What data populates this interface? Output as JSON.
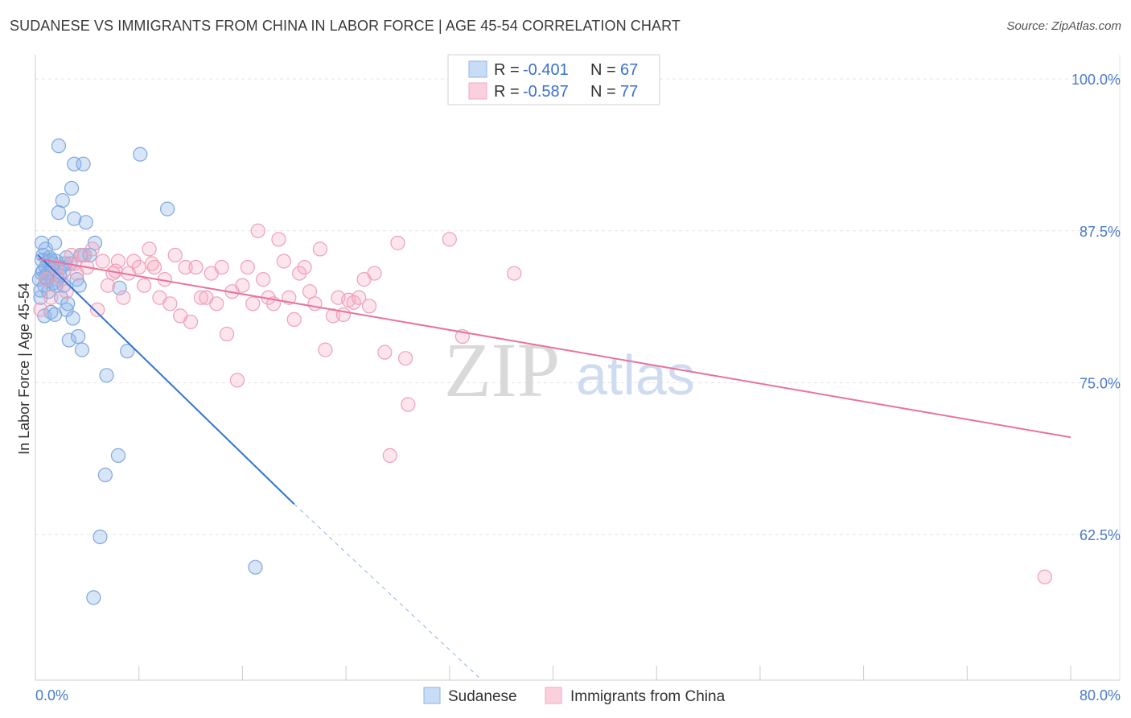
{
  "title": "SUDANESE VS IMMIGRANTS FROM CHINA IN LABOR FORCE | AGE 45-54 CORRELATION CHART",
  "source": "Source: ZipAtlas.com",
  "colors": {
    "blue": "#8db4e8",
    "blue_line": "#2f74d6",
    "pink": "#f5a9c0",
    "pink_line": "#e8739d",
    "tick": "#4a7ac9"
  },
  "legend": {
    "rows": [
      {
        "r_label": "R =",
        "r_value": "-0.401",
        "n_label": "N =",
        "n_value": "67"
      },
      {
        "r_label": "R =",
        "r_value": "-0.587",
        "n_label": "N =",
        "n_value": "77"
      }
    ]
  },
  "watermark": {
    "zip": "ZIP",
    "atlas": "atlas"
  },
  "chart_data": {
    "type": "scatter",
    "title": "SUDANESE VS IMMIGRANTS FROM CHINA IN LABOR FORCE | AGE 45-54 CORRELATION CHART",
    "xlabel": "",
    "ylabel": "In Labor Force | Age 45-54",
    "xlim": [
      0,
      80
    ],
    "ylim": [
      50.5,
      102
    ],
    "x_tick_labels": [
      "0.0%",
      "80.0%"
    ],
    "y_ticks": [
      62.5,
      75.0,
      87.5,
      100.0
    ],
    "y_tick_labels": [
      "62.5%",
      "75.0%",
      "87.5%",
      "100.0%"
    ],
    "grid": true,
    "legend_position": "top-center",
    "series": [
      {
        "name": "Sudanese",
        "color": "#8db4e8",
        "points": [
          [
            0.3,
            83.5
          ],
          [
            0.4,
            82.0
          ],
          [
            0.5,
            84.0
          ],
          [
            0.5,
            86.5
          ],
          [
            0.6,
            85.5
          ],
          [
            0.7,
            83.0
          ],
          [
            0.7,
            80.5
          ],
          [
            0.8,
            84.5
          ],
          [
            0.8,
            86.0
          ],
          [
            0.9,
            83.5
          ],
          [
            1.0,
            85.0
          ],
          [
            1.0,
            82.5
          ],
          [
            1.1,
            84.0
          ],
          [
            1.2,
            80.8
          ],
          [
            1.3,
            84.8
          ],
          [
            1.4,
            83.2
          ],
          [
            1.5,
            86.5
          ],
          [
            1.6,
            85.0
          ],
          [
            1.7,
            83.5
          ],
          [
            1.8,
            94.5
          ],
          [
            1.8,
            89.0
          ],
          [
            2.0,
            84.5
          ],
          [
            2.0,
            82.0
          ],
          [
            2.1,
            90.0
          ],
          [
            2.2,
            83.0
          ],
          [
            2.3,
            84.8
          ],
          [
            2.4,
            81.0
          ],
          [
            2.5,
            81.5
          ],
          [
            2.6,
            78.5
          ],
          [
            2.8,
            91.0
          ],
          [
            2.9,
            80.3
          ],
          [
            3.0,
            93.0
          ],
          [
            3.0,
            88.5
          ],
          [
            3.2,
            83.5
          ],
          [
            3.3,
            78.8
          ],
          [
            3.4,
            83.0
          ],
          [
            3.5,
            85.5
          ],
          [
            3.6,
            77.7
          ],
          [
            3.7,
            93.0
          ],
          [
            3.8,
            85.5
          ],
          [
            3.9,
            88.2
          ],
          [
            4.2,
            85.5
          ],
          [
            4.6,
            86.5
          ],
          [
            5.4,
            67.4
          ],
          [
            5.5,
            75.6
          ],
          [
            6.4,
            69.0
          ],
          [
            6.5,
            82.8
          ],
          [
            7.1,
            77.6
          ],
          [
            8.1,
            93.8
          ],
          [
            10.2,
            89.3
          ],
          [
            5.0,
            62.3
          ],
          [
            4.5,
            57.3
          ],
          [
            17.0,
            59.8
          ],
          [
            0.4,
            82.6
          ],
          [
            0.9,
            84.0
          ],
          [
            1.5,
            80.6
          ],
          [
            2.7,
            84.8
          ],
          [
            1.2,
            85.1
          ],
          [
            0.6,
            84.2
          ],
          [
            1.9,
            83.8
          ],
          [
            2.2,
            84.2
          ],
          [
            0.8,
            83.7
          ],
          [
            1.1,
            85.3
          ],
          [
            1.6,
            83.0
          ],
          [
            0.5,
            85.1
          ],
          [
            2.4,
            85.3
          ],
          [
            1.3,
            84.3
          ]
        ]
      },
      {
        "name": "Immigrants from China",
        "color": "#f5a9c0",
        "points": [
          [
            0.4,
            81.0
          ],
          [
            0.8,
            83.5
          ],
          [
            1.2,
            82.0
          ],
          [
            1.6,
            84.5
          ],
          [
            2.0,
            83.5
          ],
          [
            2.4,
            82.5
          ],
          [
            2.8,
            85.5
          ],
          [
            3.2,
            84.0
          ],
          [
            3.6,
            85.5
          ],
          [
            4.0,
            84.5
          ],
          [
            4.4,
            86.0
          ],
          [
            4.8,
            81.0
          ],
          [
            5.2,
            85.0
          ],
          [
            5.6,
            83.0
          ],
          [
            6.0,
            84.0
          ],
          [
            6.4,
            85.0
          ],
          [
            6.8,
            82.0
          ],
          [
            7.2,
            84.0
          ],
          [
            7.6,
            85.0
          ],
          [
            8.0,
            84.5
          ],
          [
            8.4,
            83.0
          ],
          [
            8.8,
            86.0
          ],
          [
            9.2,
            84.5
          ],
          [
            9.6,
            82.0
          ],
          [
            10.0,
            83.5
          ],
          [
            10.4,
            81.5
          ],
          [
            10.8,
            85.5
          ],
          [
            11.2,
            80.5
          ],
          [
            11.6,
            84.5
          ],
          [
            12.0,
            80.0
          ],
          [
            12.4,
            84.5
          ],
          [
            12.8,
            82.0
          ],
          [
            13.2,
            82.0
          ],
          [
            13.6,
            84.0
          ],
          [
            14.0,
            81.5
          ],
          [
            14.4,
            84.5
          ],
          [
            14.8,
            79.0
          ],
          [
            15.2,
            82.5
          ],
          [
            15.6,
            75.2
          ],
          [
            16.0,
            83.0
          ],
          [
            16.4,
            84.5
          ],
          [
            16.8,
            81.5
          ],
          [
            17.2,
            87.5
          ],
          [
            17.6,
            83.5
          ],
          [
            18.0,
            82.0
          ],
          [
            18.4,
            81.5
          ],
          [
            18.8,
            86.8
          ],
          [
            19.2,
            85.0
          ],
          [
            19.6,
            82.0
          ],
          [
            20.0,
            80.2
          ],
          [
            20.4,
            84.0
          ],
          [
            20.8,
            84.5
          ],
          [
            21.2,
            82.5
          ],
          [
            21.6,
            81.5
          ],
          [
            22.0,
            86.0
          ],
          [
            22.4,
            77.7
          ],
          [
            23.0,
            80.5
          ],
          [
            23.4,
            82.0
          ],
          [
            23.8,
            80.6
          ],
          [
            24.2,
            81.8
          ],
          [
            24.6,
            81.6
          ],
          [
            25.0,
            82.0
          ],
          [
            25.4,
            83.5
          ],
          [
            25.8,
            81.3
          ],
          [
            26.2,
            84.0
          ],
          [
            27.0,
            77.5
          ],
          [
            27.4,
            69.0
          ],
          [
            28.0,
            86.5
          ],
          [
            28.6,
            77.0
          ],
          [
            28.8,
            73.2
          ],
          [
            32.0,
            86.8
          ],
          [
            33.0,
            78.8
          ],
          [
            37.0,
            84.0
          ],
          [
            78.0,
            59.0
          ],
          [
            3.0,
            84.8
          ],
          [
            6.2,
            84.2
          ],
          [
            9.0,
            84.8
          ]
        ]
      }
    ],
    "trendlines": [
      {
        "series": "Sudanese",
        "from": [
          0.2,
          85.5
        ],
        "to": [
          20.0,
          65.0
        ],
        "dashed_to": [
          34.5,
          50.5
        ]
      },
      {
        "series": "Immigrants from China",
        "from": [
          0.2,
          85.2
        ],
        "to": [
          80.0,
          70.5
        ]
      }
    ]
  },
  "bottom_legend": {
    "items": [
      "Sudanese",
      "Immigrants from China"
    ]
  }
}
